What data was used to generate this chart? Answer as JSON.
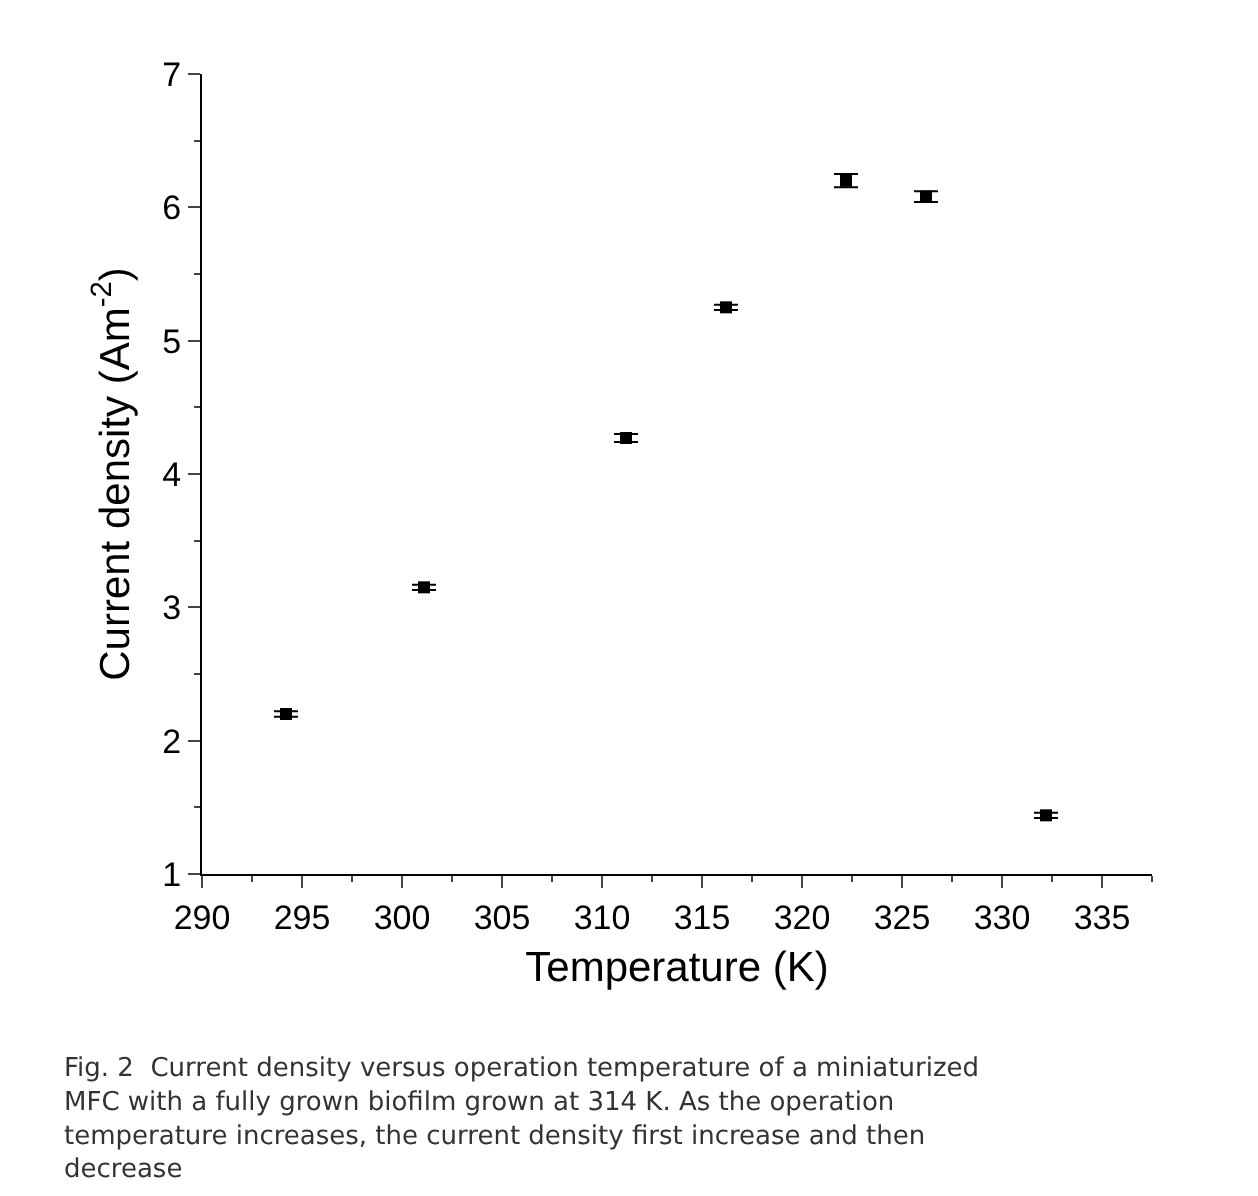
{
  "chart_data": {
    "type": "scatter",
    "xlabel": "Temperature (K)",
    "ylabel": "Current density (Am$^{-2}$)",
    "x": [
      294.2,
      301.1,
      311.2,
      316.2,
      322.2,
      326.2,
      332.2
    ],
    "series": [
      {
        "color": "#000000",
        "values": [
          2.2,
          3.15,
          4.27,
          5.25,
          6.2,
          6.08,
          1.44
        ],
        "errors": [
          0.02,
          0.02,
          0.03,
          0.02,
          0.05,
          0.04,
          0.02
        ]
      }
    ],
    "xlim": [
      290,
      337.5
    ],
    "xticks": [
      290,
      295,
      300,
      305,
      310,
      315,
      320,
      325,
      330,
      335
    ],
    "ylim": [
      1,
      7
    ],
    "yticks": [
      1,
      2,
      3,
      4,
      5,
      6,
      7
    ],
    "marker": "square",
    "annotations": [
      "Fig. 2  Current density versus operation temperature of a miniaturized MFC with a fully grown biofilm grown at 314 K. As the operation temperature increases, the current density first increase and then decrease"
    ]
  }
}
